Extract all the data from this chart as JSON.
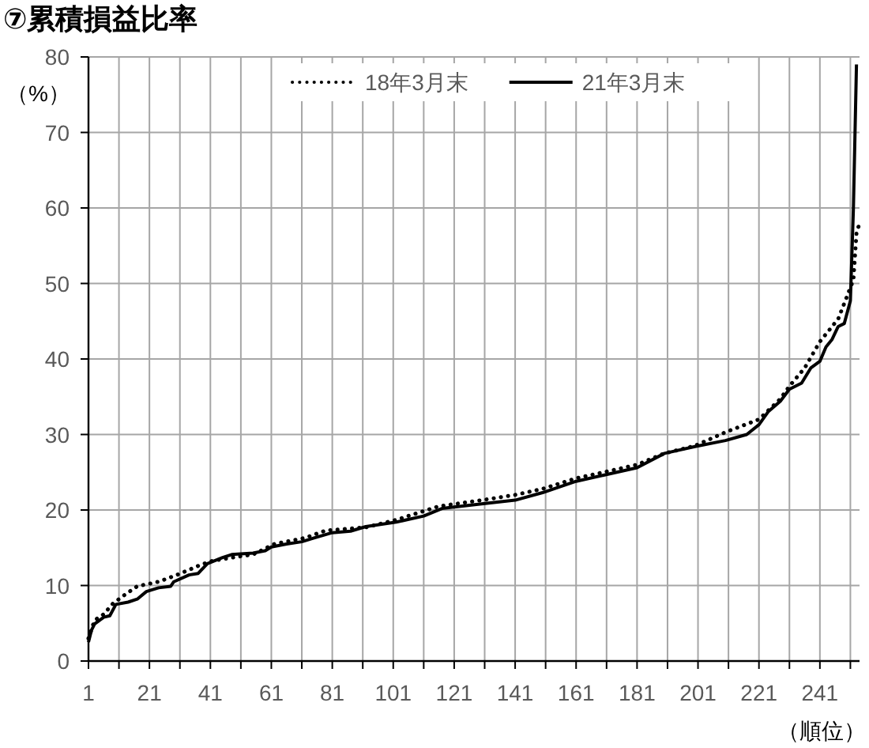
{
  "chart_data": {
    "type": "line",
    "title": "⑦累積損益比率",
    "ylabel": "（%）",
    "xlabel": "（順位）",
    "xlim": [
      1,
      254
    ],
    "ylim": [
      0,
      80
    ],
    "xticks": [
      1,
      {
        "value": 11,
        "label": null
      },
      21,
      {
        "value": 31,
        "label": null
      },
      41,
      {
        "value": 51,
        "label": null
      },
      61,
      {
        "value": 71,
        "label": null
      },
      81,
      {
        "value": 91,
        "label": null
      },
      101,
      {
        "value": 111,
        "label": null
      },
      121,
      {
        "value": 131,
        "label": null
      },
      141,
      {
        "value": 151,
        "label": null
      },
      161,
      {
        "value": 171,
        "label": null
      },
      181,
      {
        "value": 191,
        "label": null
      },
      201,
      {
        "value": 211,
        "label": null
      },
      221,
      {
        "value": 231,
        "label": null
      },
      241,
      {
        "value": 251,
        "label": null
      }
    ],
    "yticks": [
      0,
      10,
      20,
      30,
      40,
      50,
      60,
      70,
      80
    ],
    "grid": true,
    "legend": "top",
    "marker": "none",
    "series": [
      {
        "name": "18年3月末",
        "color": "#000000",
        "line_style": "dotted",
        "x": [
          1,
          3,
          6,
          9,
          13,
          17,
          24,
          30,
          37,
          41,
          48,
          55,
          62,
          72,
          79,
          92,
          102,
          116,
          130,
          141,
          150,
          161,
          170,
          181,
          190,
          200,
          210,
          221,
          228,
          231,
          236,
          241,
          247,
          250,
          252,
          253,
          254
        ],
        "values": [
          3,
          5.4,
          6.2,
          7.6,
          8.8,
          9.9,
          10.5,
          11.4,
          12.6,
          13.2,
          13.7,
          14.1,
          15.5,
          16.3,
          17.3,
          17.7,
          18.7,
          20.5,
          21.3,
          22,
          22.8,
          24.2,
          25,
          26,
          27.5,
          28.5,
          30.3,
          32,
          34.7,
          36.4,
          38.8,
          42.3,
          45.3,
          48.4,
          50.5,
          56.6,
          58
        ]
      },
      {
        "name": "21年3月末",
        "color": "#000000",
        "line_style": "solid",
        "x": [
          1,
          2,
          3,
          6,
          8,
          10,
          14,
          17,
          20,
          24,
          28,
          29,
          34,
          37,
          40,
          45,
          48,
          55,
          59,
          61,
          66,
          71,
          75,
          81,
          87,
          92,
          102,
          111,
          117,
          130,
          141,
          150,
          161,
          170,
          181,
          190,
          200,
          210,
          217,
          221,
          224,
          228,
          231,
          235,
          238,
          241,
          243,
          245,
          247,
          249,
          251,
          252,
          253
        ],
        "values": [
          2.5,
          4.1,
          4.9,
          5.8,
          6,
          7.5,
          7.8,
          8.2,
          9.2,
          9.7,
          9.9,
          10.5,
          11.4,
          11.6,
          12.9,
          13.7,
          14.1,
          14.3,
          14.6,
          15.1,
          15.5,
          15.8,
          16.3,
          17,
          17.2,
          17.8,
          18.4,
          19.2,
          20.2,
          20.8,
          21.3,
          22.3,
          23.8,
          24.6,
          25.6,
          27.5,
          28.4,
          29.2,
          30,
          31.3,
          33,
          34.4,
          36,
          36.8,
          38.8,
          39.7,
          41.6,
          42.6,
          44.3,
          44.7,
          47.7,
          60,
          79
        ]
      }
    ]
  }
}
